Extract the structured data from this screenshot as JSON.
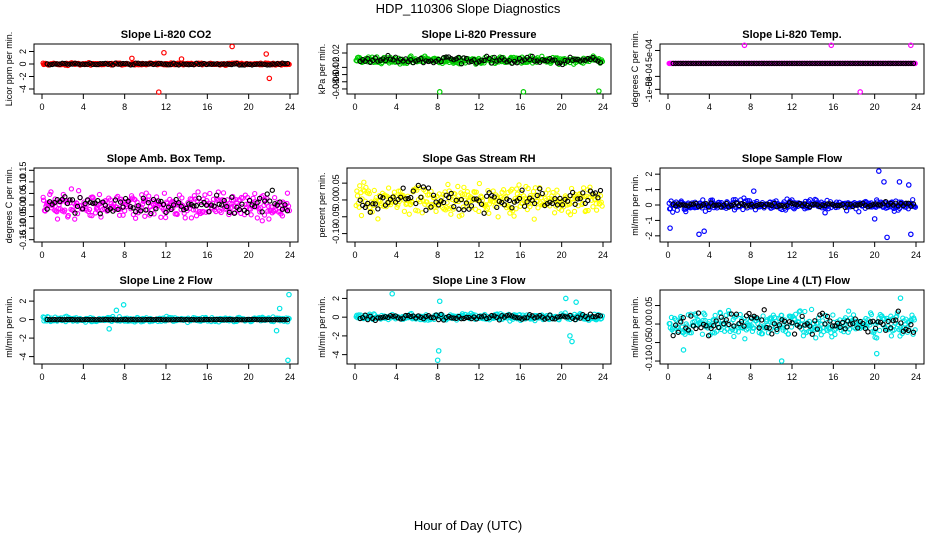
{
  "figure": {
    "title": "HDP_110306  Slope Diagnostics",
    "xlabel": "Hour of Day (UTC)"
  },
  "chart_data": [
    {
      "type": "scatter",
      "title": "Slope Li-820 CO2",
      "ylabel": "Licor ppm per min.",
      "xlim": [
        0,
        24
      ],
      "ylim": [
        -4.8,
        3.2
      ],
      "xticks": [
        "0",
        "4",
        "8",
        "12",
        "16",
        "20",
        "24"
      ],
      "yticks": [
        {
          "v": -4,
          "label": "-4"
        },
        {
          "v": -2,
          "label": "-2"
        },
        {
          "v": 0,
          "label": "0"
        },
        {
          "v": 2,
          "label": "2"
        }
      ],
      "color": "#ff0000",
      "base_spread": 0.15,
      "black_spread": 0.15,
      "outliers": [
        {
          "x": 11.3,
          "y": -4.5
        },
        {
          "x": 11.8,
          "y": 1.8
        },
        {
          "x": 18.4,
          "y": 2.8
        },
        {
          "x": 21.7,
          "y": 1.6
        },
        {
          "x": 22.0,
          "y": -2.3
        },
        {
          "x": 13.5,
          "y": 0.8
        },
        {
          "x": 8.7,
          "y": 0.9
        }
      ]
    },
    {
      "type": "scatter",
      "title": "Slope Li-820 Pressure",
      "ylabel": "kPa per min.",
      "xlim": [
        0,
        24
      ],
      "ylim": [
        -0.094,
        0.045
      ],
      "xticks": [
        "0",
        "4",
        "8",
        "12",
        "16",
        "20",
        "24"
      ],
      "yticks": [
        {
          "v": 0.02,
          "label": "0.02"
        },
        {
          "v": -0.02,
          "label": "-0.02"
        },
        {
          "v": -0.04,
          "label": "-0.04"
        },
        {
          "v": -0.06,
          "label": "-0.06"
        },
        {
          "v": -0.08,
          "label": "-0.08"
        }
      ],
      "color": "#00cc00",
      "base_spread": 0.009,
      "black_spread": 0.009,
      "outliers": [
        {
          "x": 8.2,
          "y": -0.088
        },
        {
          "x": 16.3,
          "y": -0.088
        },
        {
          "x": 23.6,
          "y": -0.086
        }
      ]
    },
    {
      "type": "scatter",
      "title": "Slope Li-820 Temp.",
      "ylabel": "degrees C per min.",
      "xlim": [
        0,
        24
      ],
      "ylim": [
        -0.00118,
        0.00075
      ],
      "xticks": [
        "0",
        "4",
        "8",
        "12",
        "16",
        "20",
        "24"
      ],
      "yticks": [
        {
          "v": 0.0005,
          "label": "5e-04"
        },
        {
          "v": -0.0005,
          "label": "-5e-04"
        },
        {
          "v": -0.001,
          "label": "-1e-03"
        }
      ],
      "color": "#ff00ff",
      "base_spread": 0.0,
      "black_spread": 0.0,
      "outliers": [
        {
          "x": 7.4,
          "y": 0.0007
        },
        {
          "x": 15.8,
          "y": 0.0007
        },
        {
          "x": 23.5,
          "y": 0.0007
        },
        {
          "x": 18.6,
          "y": -0.0011
        }
      ]
    },
    {
      "type": "scatter",
      "title": "Slope Amb. Box Temp.",
      "ylabel": "degrees C per min.",
      "xlim": [
        0,
        24
      ],
      "ylim": [
        -0.16,
        0.16
      ],
      "xticks": [
        "0",
        "4",
        "8",
        "12",
        "16",
        "20",
        "24"
      ],
      "yticks": [
        {
          "v": 0.15,
          "label": "0.15"
        },
        {
          "v": 0.1,
          "label": "0.10"
        },
        {
          "v": 0.05,
          "label": "0.05"
        },
        {
          "v": 0.0,
          "label": "0.00"
        },
        {
          "v": -0.05,
          "label": "-0.05"
        },
        {
          "v": -0.1,
          "label": "-0.10"
        },
        {
          "v": -0.15,
          "label": "-0.15"
        }
      ],
      "color": "#ff00ff",
      "base_spread": 0.055,
      "black_spread": 0.04,
      "outliers": []
    },
    {
      "type": "scatter",
      "title": "Slope Gas Stream RH",
      "ylabel": "percent per min.",
      "xlim": [
        0,
        24
      ],
      "ylim": [
        -0.125,
        0.095
      ],
      "xticks": [
        "0",
        "4",
        "8",
        "12",
        "16",
        "20",
        "24"
      ],
      "yticks": [
        {
          "v": 0.05,
          "label": "0.05"
        },
        {
          "v": 0.0,
          "label": "0.00"
        },
        {
          "v": -0.05,
          "label": "-0.05"
        },
        {
          "v": -0.1,
          "label": "-0.10"
        }
      ],
      "color": "#ffff00",
      "base_spread": 0.04,
      "black_spread": 0.035,
      "outliers": []
    },
    {
      "type": "scatter",
      "title": "Slope Sample Flow",
      "ylabel": "ml/min per min.",
      "xlim": [
        0,
        24
      ],
      "ylim": [
        -2.4,
        2.4
      ],
      "xticks": [
        "0",
        "4",
        "8",
        "12",
        "16",
        "20",
        "24"
      ],
      "yticks": [
        {
          "v": 2,
          "label": "2"
        },
        {
          "v": 1,
          "label": "1"
        },
        {
          "v": 0,
          "label": "0"
        },
        {
          "v": -1,
          "label": "-1"
        },
        {
          "v": -2,
          "label": "-2"
        }
      ],
      "color": "#0000ff",
      "base_spread": 0.3,
      "black_spread": 0.15,
      "outliers": [
        {
          "x": 3.0,
          "y": -1.9
        },
        {
          "x": 3.5,
          "y": -1.7
        },
        {
          "x": 0.2,
          "y": -1.5
        },
        {
          "x": 20.4,
          "y": 2.2
        },
        {
          "x": 20.9,
          "y": 1.5
        },
        {
          "x": 21.2,
          "y": -2.1
        },
        {
          "x": 23.5,
          "y": -1.9
        },
        {
          "x": 23.3,
          "y": 1.3
        },
        {
          "x": 22.4,
          "y": 1.5
        },
        {
          "x": 20.0,
          "y": -0.9
        },
        {
          "x": 8.3,
          "y": 0.9
        },
        {
          "x": 15.2,
          "y": -0.5
        }
      ]
    },
    {
      "type": "scatter",
      "title": "Slope Line 2 Flow",
      "ylabel": "ml/min per min.",
      "xlim": [
        0,
        24
      ],
      "ylim": [
        -4.8,
        3.2
      ],
      "xticks": [
        "0",
        "4",
        "8",
        "12",
        "16",
        "20",
        "24"
      ],
      "yticks": [
        {
          "v": 2,
          "label": "2"
        },
        {
          "v": 0,
          "label": "0"
        },
        {
          "v": -2,
          "label": "-2"
        },
        {
          "v": -4,
          "label": "-4"
        }
      ],
      "color": "#00e5e5",
      "base_spread": 0.25,
      "black_spread": 0.02,
      "outliers": [
        {
          "x": 23.8,
          "y": -4.4
        },
        {
          "x": 23.9,
          "y": 2.7
        },
        {
          "x": 7.9,
          "y": 1.6
        },
        {
          "x": 7.2,
          "y": 1.0
        },
        {
          "x": 6.5,
          "y": -1.0
        },
        {
          "x": 23.0,
          "y": 1.2
        },
        {
          "x": 22.7,
          "y": -1.2
        }
      ]
    },
    {
      "type": "scatter",
      "title": "Slope Line 3 Flow",
      "ylabel": "ml/min per min.",
      "xlim": [
        0,
        24
      ],
      "ylim": [
        -5.0,
        2.9
      ],
      "xticks": [
        "0",
        "4",
        "8",
        "12",
        "16",
        "20",
        "24"
      ],
      "yticks": [
        {
          "v": 2,
          "label": "2"
        },
        {
          "v": 0,
          "label": "0"
        },
        {
          "v": -2,
          "label": "-2"
        },
        {
          "v": -4,
          "label": "-4"
        }
      ],
      "color": "#00e5e5",
      "base_spread": 0.3,
      "black_spread": 0.25,
      "outliers": [
        {
          "x": 8.1,
          "y": -3.6
        },
        {
          "x": 8.0,
          "y": -4.6
        },
        {
          "x": 3.6,
          "y": 2.5
        },
        {
          "x": 8.2,
          "y": 1.7
        },
        {
          "x": 20.4,
          "y": 2.0
        },
        {
          "x": 20.8,
          "y": -2.0
        },
        {
          "x": 21.0,
          "y": -2.6
        },
        {
          "x": 21.4,
          "y": 1.6
        }
      ]
    },
    {
      "type": "scatter",
      "title": "Slope Line 4 (LT) Flow",
      "ylabel": "ml/min per min.",
      "xlim": [
        0,
        24
      ],
      "ylim": [
        -0.108,
        0.092
      ],
      "xticks": [
        "0",
        "4",
        "8",
        "12",
        "16",
        "20",
        "24"
      ],
      "yticks": [
        {
          "v": 0.05,
          "label": "0.05"
        },
        {
          "v": 0.0,
          "label": "0.00"
        },
        {
          "v": -0.05,
          "label": "-0.05"
        },
        {
          "v": -0.1,
          "label": "-0.10"
        }
      ],
      "color": "#00e5e5",
      "base_spread": 0.03,
      "black_spread": 0.03,
      "outliers": [
        {
          "x": 11.0,
          "y": -0.1
        },
        {
          "x": 20.2,
          "y": -0.08
        },
        {
          "x": 1.5,
          "y": -0.07
        },
        {
          "x": 22.5,
          "y": 0.07
        }
      ]
    }
  ]
}
